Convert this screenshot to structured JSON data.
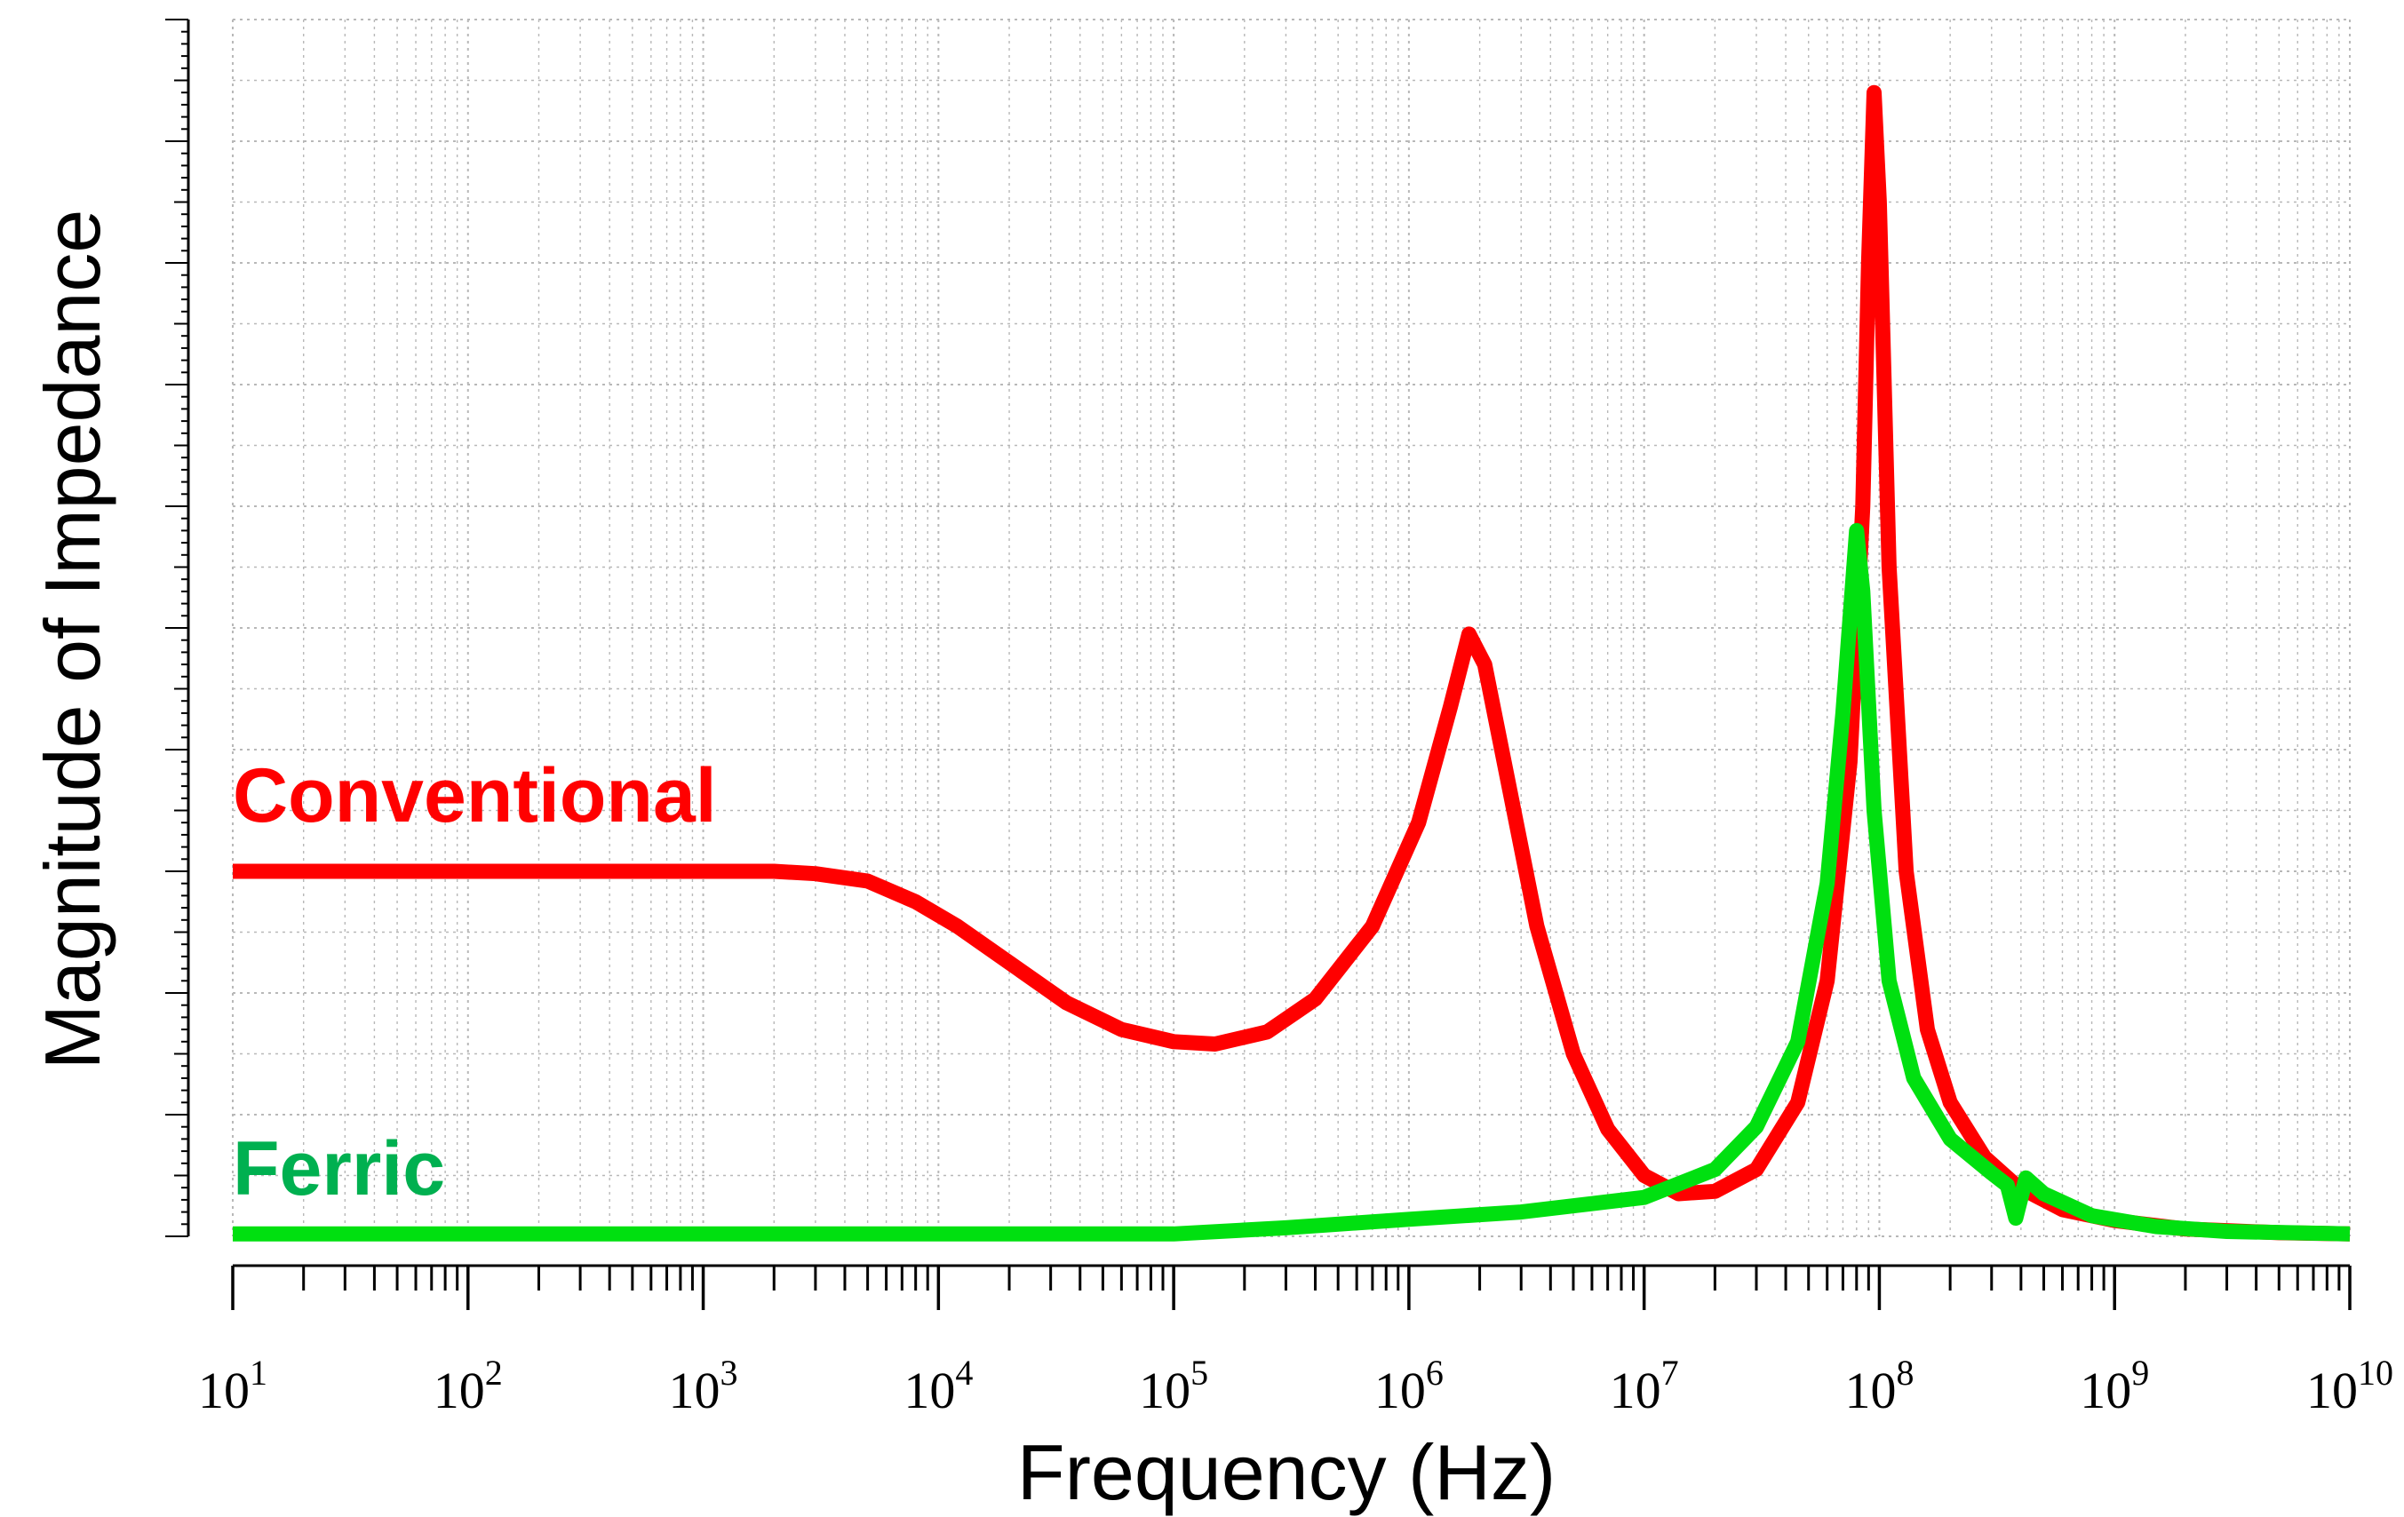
{
  "chart_data": {
    "type": "line",
    "title": "",
    "xlabel": "Frequency (Hz)",
    "ylabel": "Magnitude of Impedance",
    "x_scale": "log",
    "xlim": [
      10,
      10000000000
    ],
    "ylim": [
      0,
      10
    ],
    "y_tick_labels": "none",
    "grid": true,
    "x_ticks": [
      {
        "base": "10",
        "exp": "1",
        "value": 10
      },
      {
        "base": "10",
        "exp": "2",
        "value": 100
      },
      {
        "base": "10",
        "exp": "3",
        "value": 1000
      },
      {
        "base": "10",
        "exp": "4",
        "value": 10000
      },
      {
        "base": "10",
        "exp": "5",
        "value": 100000
      },
      {
        "base": "10",
        "exp": "6",
        "value": 1000000
      },
      {
        "base": "10",
        "exp": "7",
        "value": 10000000
      },
      {
        "base": "10",
        "exp": "8",
        "value": 100000000
      },
      {
        "base": "10",
        "exp": "9",
        "value": 1000000000
      },
      {
        "base": "10",
        "exp": "10",
        "value": 10000000000
      }
    ],
    "series": [
      {
        "name": "Conventional",
        "color": "#ff0000",
        "points": [
          [
            10,
            3.0
          ],
          [
            100,
            3.0
          ],
          [
            1000,
            3.0
          ],
          [
            2000,
            3.0
          ],
          [
            3000,
            2.98
          ],
          [
            5000,
            2.92
          ],
          [
            8000,
            2.75
          ],
          [
            12000,
            2.55
          ],
          [
            20000,
            2.25
          ],
          [
            35000,
            1.92
          ],
          [
            60000,
            1.7
          ],
          [
            100000,
            1.6
          ],
          [
            150000,
            1.58
          ],
          [
            250000,
            1.68
          ],
          [
            400000,
            1.95
          ],
          [
            700000,
            2.55
          ],
          [
            1100000,
            3.4
          ],
          [
            1500000,
            4.35
          ],
          [
            1800000,
            4.95
          ],
          [
            2100000,
            4.7
          ],
          [
            2600000,
            3.8
          ],
          [
            3500000,
            2.55
          ],
          [
            5000000,
            1.5
          ],
          [
            7000000,
            0.88
          ],
          [
            10000000,
            0.5
          ],
          [
            14000000,
            0.35
          ],
          [
            20000000,
            0.37
          ],
          [
            30000000,
            0.55
          ],
          [
            45000000,
            1.1
          ],
          [
            60000000,
            2.1
          ],
          [
            75000000,
            3.9
          ],
          [
            85000000,
            6.0
          ],
          [
            90000000,
            8.0
          ],
          [
            95000000,
            9.4
          ],
          [
            100000000,
            8.5
          ],
          [
            110000000,
            5.5
          ],
          [
            130000000,
            3.0
          ],
          [
            160000000,
            1.7
          ],
          [
            200000000,
            1.1
          ],
          [
            280000000,
            0.65
          ],
          [
            380000000,
            0.42
          ],
          [
            600000000,
            0.22
          ],
          [
            1000000000,
            0.13
          ],
          [
            2000000000,
            0.06
          ],
          [
            5000000000,
            0.03
          ],
          [
            10000000000,
            0.02
          ]
        ]
      },
      {
        "name": "Ferric",
        "color": "#00e010",
        "points": [
          [
            10,
            0.02
          ],
          [
            1000,
            0.02
          ],
          [
            100000,
            0.02
          ],
          [
            300000,
            0.07
          ],
          [
            1000000,
            0.14
          ],
          [
            3000000,
            0.2
          ],
          [
            10000000,
            0.32
          ],
          [
            20000000,
            0.55
          ],
          [
            30000000,
            0.9
          ],
          [
            45000000,
            1.6
          ],
          [
            60000000,
            2.9
          ],
          [
            70000000,
            4.3
          ],
          [
            80000000,
            5.8
          ],
          [
            85000000,
            5.3
          ],
          [
            95000000,
            3.5
          ],
          [
            110000000,
            2.1
          ],
          [
            140000000,
            1.3
          ],
          [
            200000000,
            0.8
          ],
          [
            300000000,
            0.52
          ],
          [
            350000000,
            0.42
          ],
          [
            380000000,
            0.15
          ],
          [
            420000000,
            0.48
          ],
          [
            500000000,
            0.35
          ],
          [
            800000000,
            0.17
          ],
          [
            1500000000,
            0.08
          ],
          [
            3000000000,
            0.04
          ],
          [
            10000000000,
            0.02
          ]
        ]
      }
    ],
    "annotations": [
      {
        "text": "Conventional",
        "color": "#ff0000"
      },
      {
        "text": "Ferric",
        "color": "#00b050"
      }
    ]
  }
}
